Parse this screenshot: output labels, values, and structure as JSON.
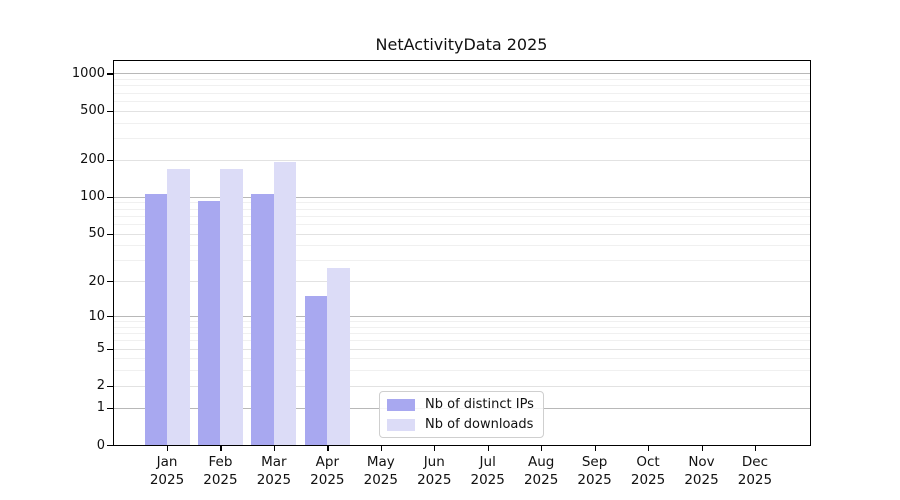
{
  "figure": {
    "background": "#ffffff"
  },
  "chart_data": {
    "type": "bar",
    "title": "NetActivityData 2025",
    "categories": [
      "Jan",
      "Feb",
      "Mar",
      "Apr",
      "May",
      "Jun",
      "Jul",
      "Aug",
      "Sep",
      "Oct",
      "Nov",
      "Dec"
    ],
    "x_tick_second_line": "2025",
    "series": [
      {
        "name": "Nb of distinct IPs",
        "color": "#a8a8f0",
        "values": [
          106,
          92,
          106,
          15,
          0,
          0,
          0,
          0,
          0,
          0,
          0,
          0
        ]
      },
      {
        "name": "Nb of downloads",
        "color": "#dcdcf7",
        "values": [
          168,
          169,
          190,
          26,
          0,
          0,
          0,
          0,
          0,
          0,
          0,
          0
        ]
      }
    ],
    "y_axis": {
      "scale": "log1p",
      "tick_values": [
        0,
        1,
        2,
        5,
        10,
        20,
        50,
        100,
        200,
        500,
        1000
      ],
      "major_grid_values": [
        1,
        10,
        100,
        1000
      ],
      "soft_grid_values": [
        2,
        5,
        20,
        50,
        200,
        500
      ],
      "minor_grid_values": [
        3,
        4,
        6,
        7,
        8,
        9,
        30,
        40,
        60,
        70,
        80,
        90,
        300,
        400,
        600,
        700,
        800,
        900
      ],
      "grid": true
    },
    "legend": {
      "position": "lower-center"
    }
  },
  "colors": {
    "spine": "#000000",
    "major_grid": "#b8b8b8",
    "soft_grid": "#e2e2e2",
    "minor_grid": "#f0f0f0",
    "text": "#111111"
  }
}
